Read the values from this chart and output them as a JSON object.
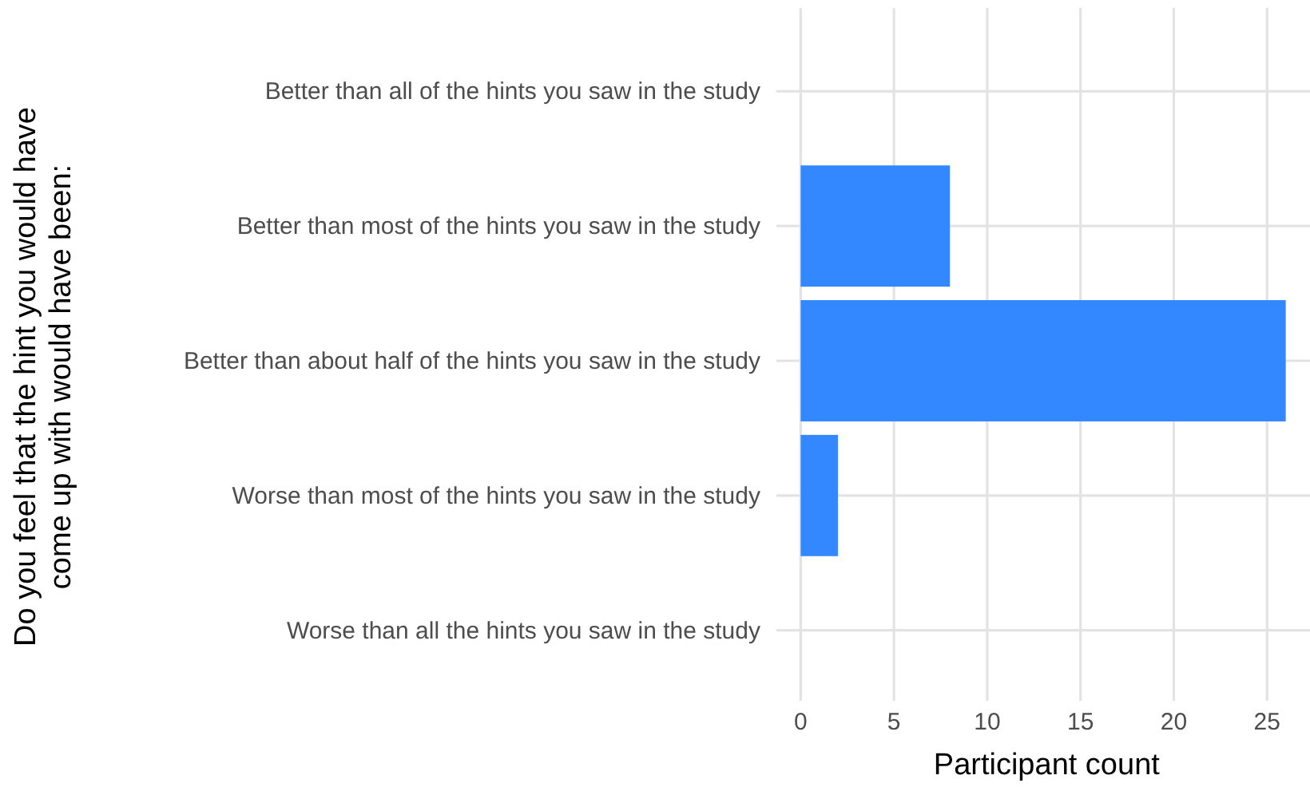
{
  "chart_data": {
    "type": "bar",
    "orientation": "horizontal",
    "ylabel": "Do you feel that the hint you would have\ncome up with would have been:",
    "xlabel": "Participant count",
    "categories": [
      "Better than all of the hints you saw in the study",
      "Better than most of the hints you saw in the study",
      "Better than about half of the hints you saw in the study",
      "Worse than most of the hints you saw in the study",
      "Worse than all the hints you saw in the study"
    ],
    "values": [
      0,
      8,
      26,
      2,
      0
    ],
    "color": "#3388ff",
    "xlim": [
      -1.3,
      27.3
    ],
    "xticks": [
      0,
      5,
      10,
      15,
      20,
      25
    ],
    "grid": true
  }
}
